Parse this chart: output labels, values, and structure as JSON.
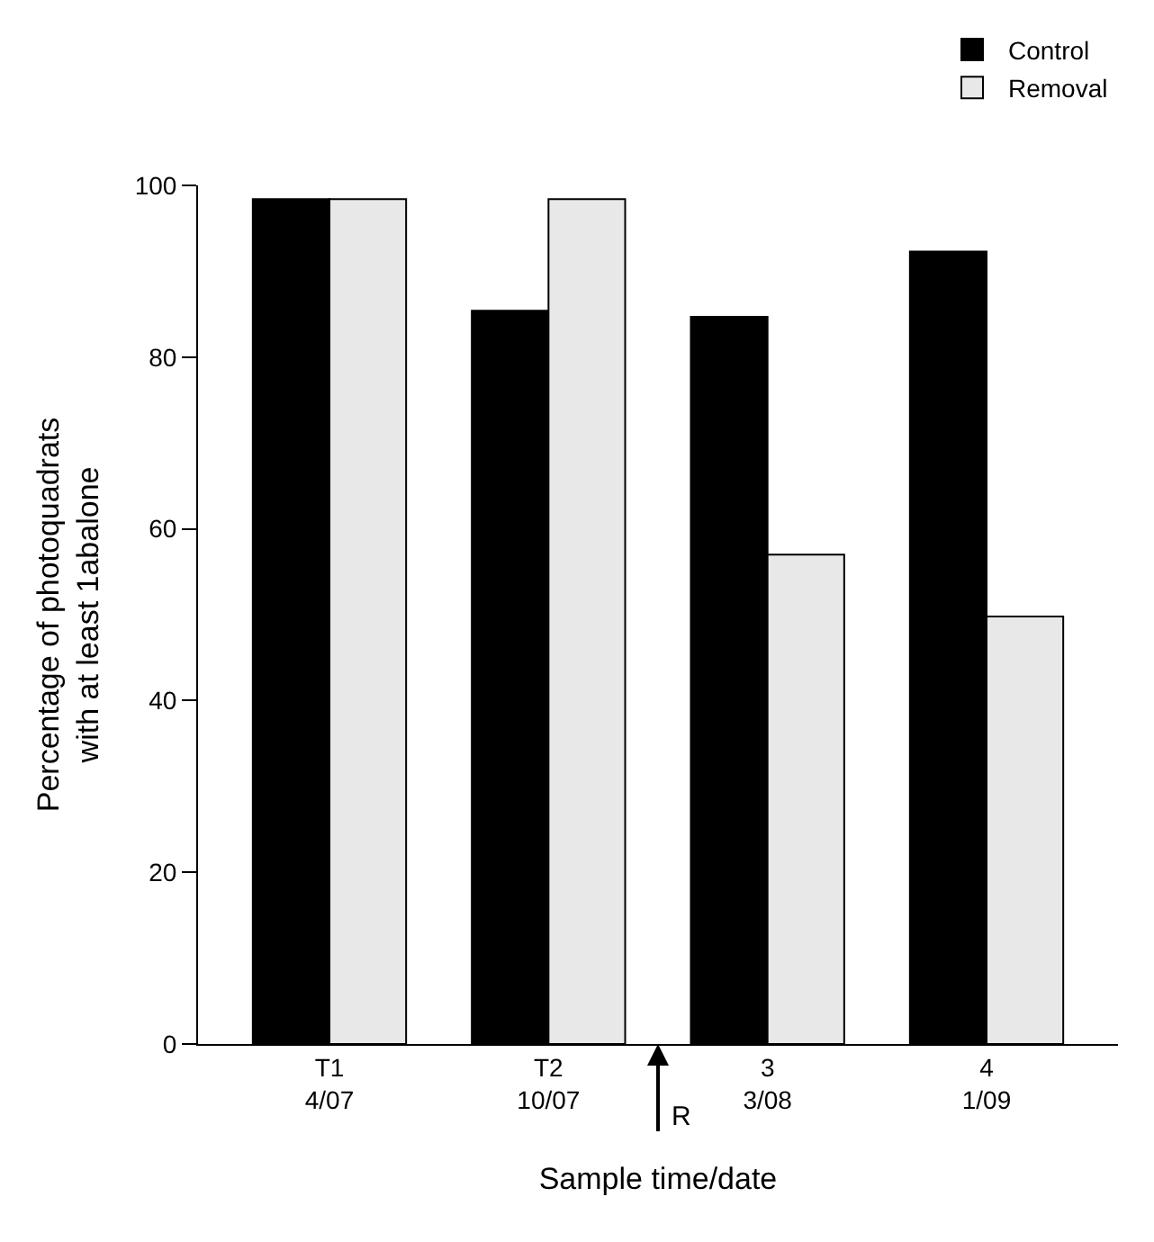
{
  "chart_data": {
    "type": "bar",
    "xlabel": "Sample time/date",
    "ylabel": "Percentage of photoquadrats\nwith at least 1abalone",
    "categories": [
      "T1\n4/07",
      "T2\n10/07",
      "3\n3/08",
      "4\n1/09"
    ],
    "series": [
      {
        "name": "Control",
        "color": "#000000",
        "values": [
          98.4,
          85.4,
          84.7,
          92.3
        ]
      },
      {
        "name": "Removal",
        "color": "#e8e8e8",
        "values": [
          98.4,
          98.4,
          57.0,
          49.8
        ]
      }
    ],
    "ylim": [
      0,
      100
    ],
    "yticks": [
      0,
      20,
      40,
      60,
      80,
      100
    ],
    "grid": false,
    "legend": "top right",
    "annotations": [
      "R"
    ]
  }
}
